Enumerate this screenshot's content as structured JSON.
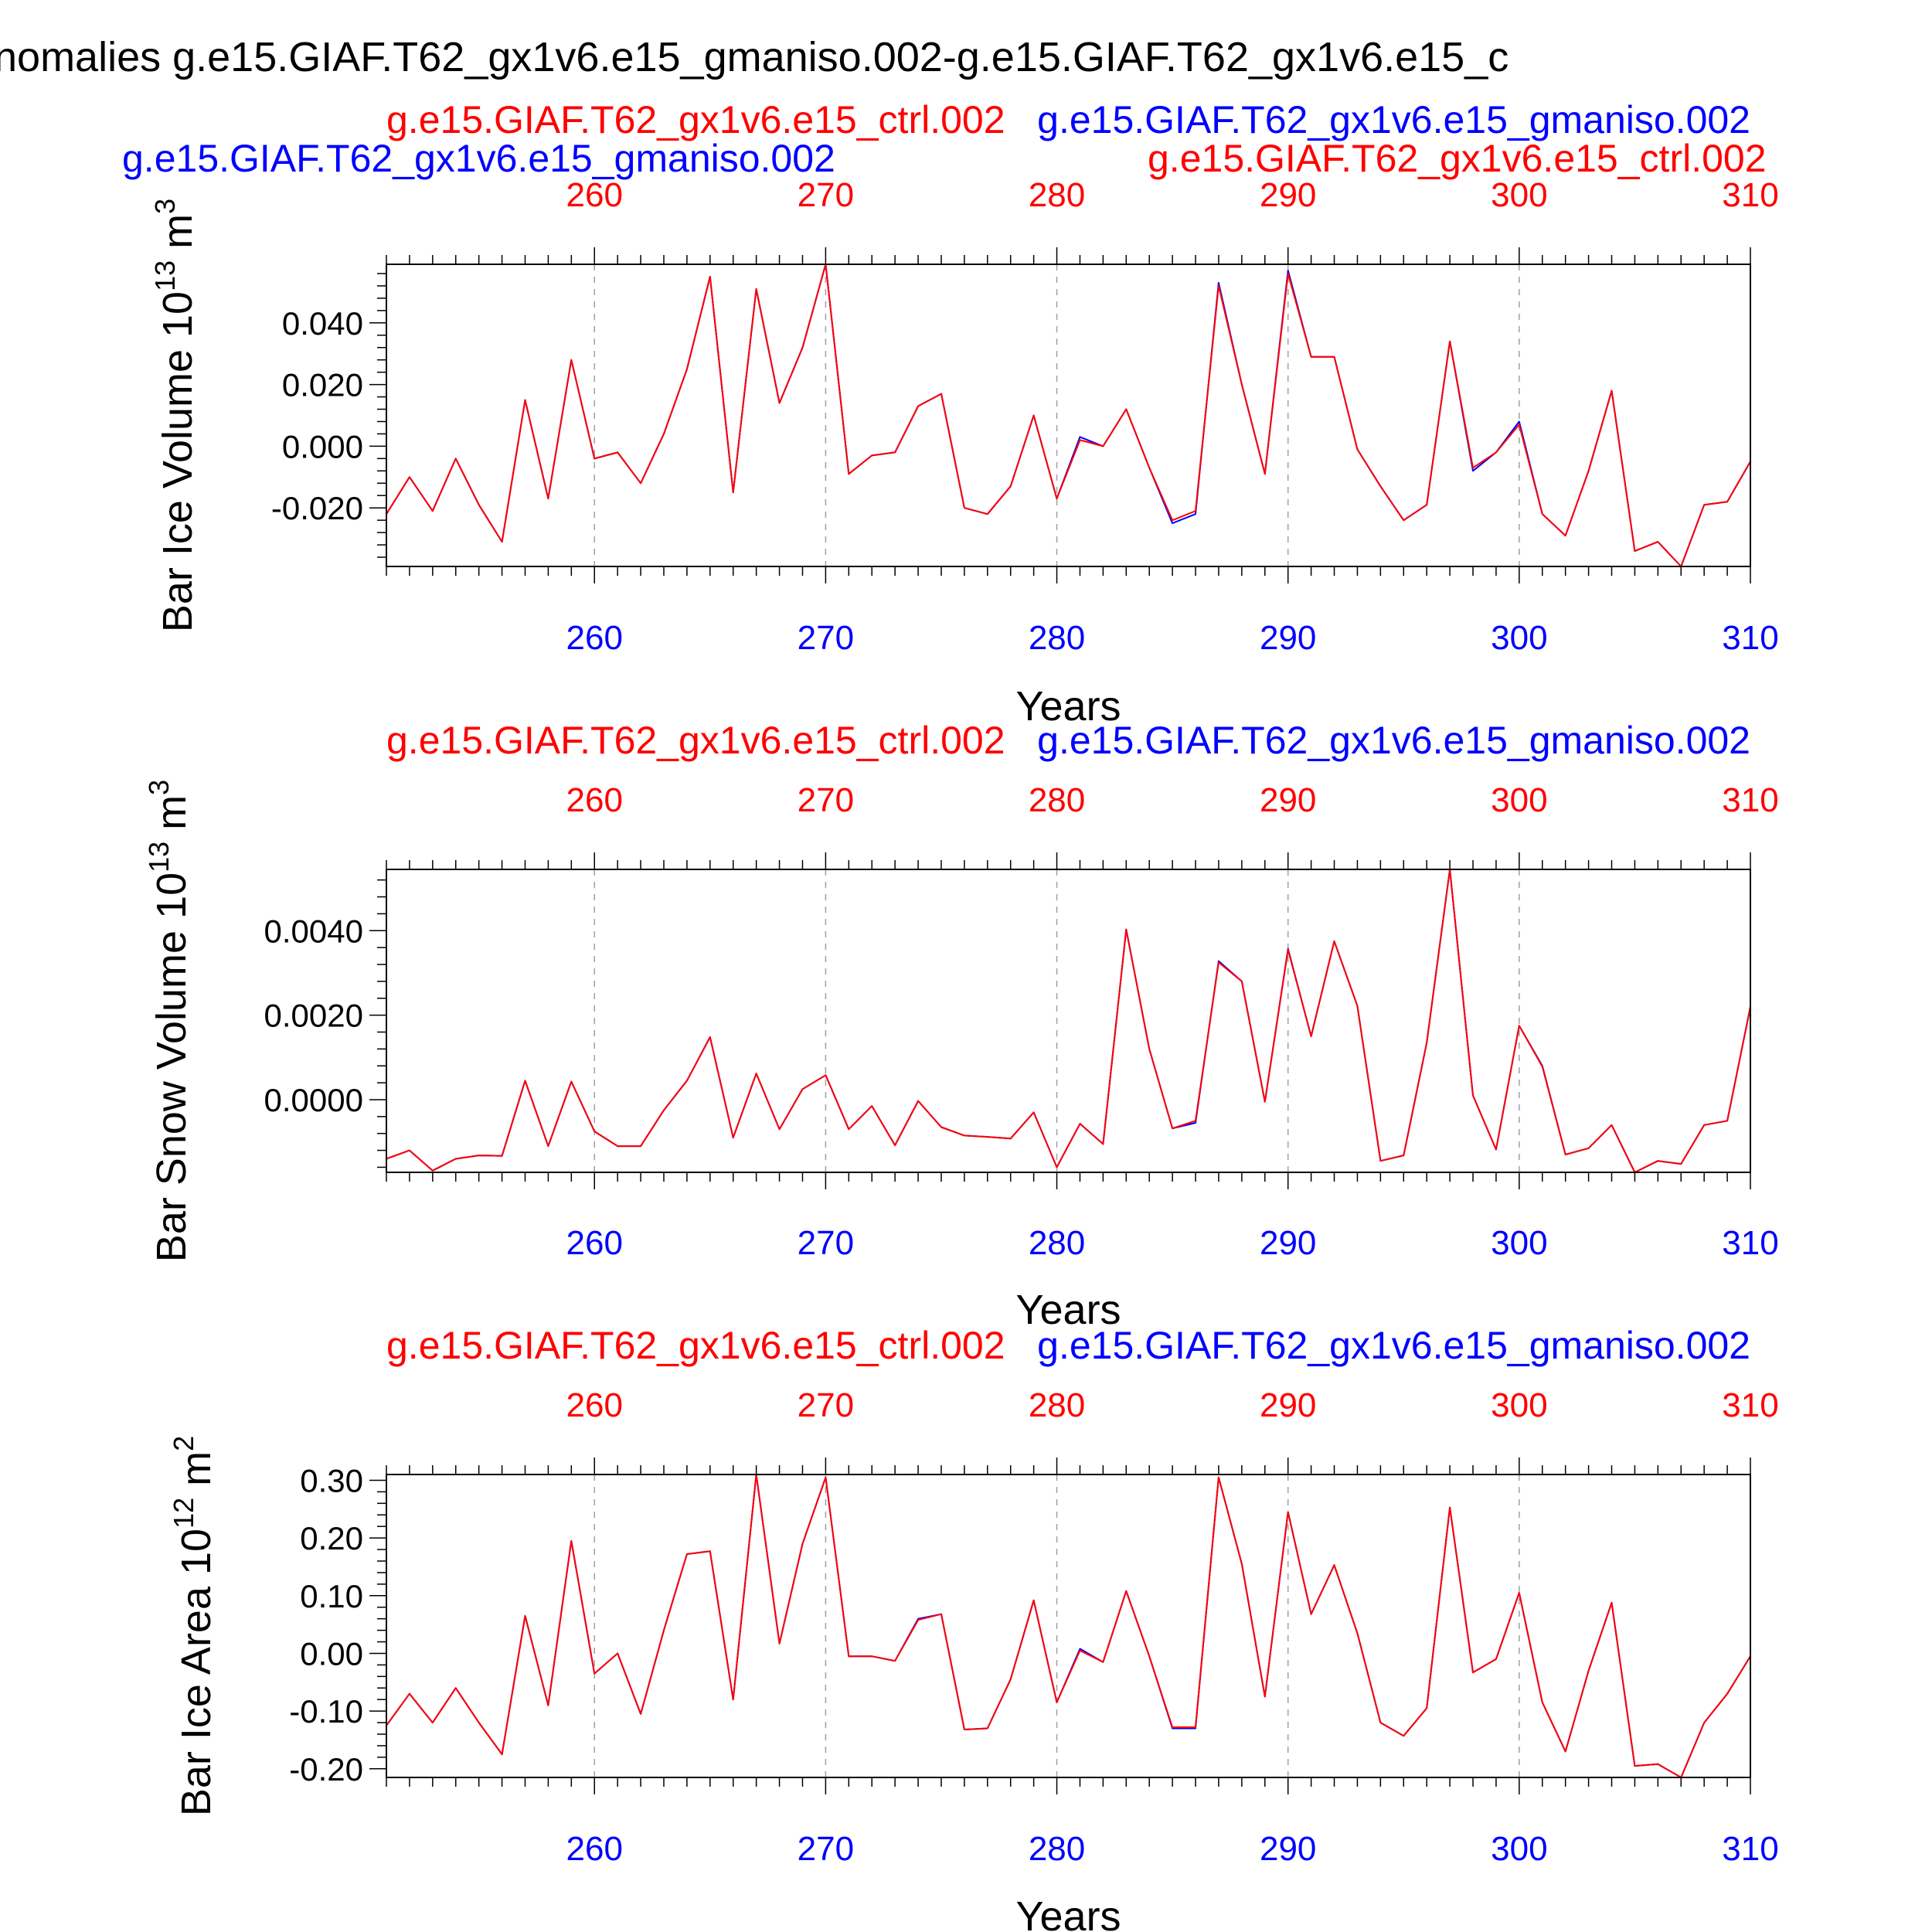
{
  "colors": {
    "red": "#ff0000",
    "blue": "#0000ff",
    "ctrl_line": "#ff0000",
    "gmaniso_line": "#0000ff",
    "frame": "#000000",
    "grid": "#a0a0a0"
  },
  "figure_title": "nomalies g.e15.GIAF.T62_gx1v6.e15_gmaniso.002-g.e15.GIAF.T62_gx1v6.e15_c",
  "top_label_left": "g.e15.GIAF.T62_gx1v6.e15_gmaniso.002",
  "top_label_right": "g.e15.GIAF.T62_gx1v6.e15_ctrl.002",
  "chart_data": [
    {
      "type": "line",
      "run_label_red": "g.e15.GIAF.T62_gx1v6.e15_ctrl.002",
      "run_label_blue": "g.e15.GIAF.T62_gx1v6.e15_gmaniso.002",
      "ylabel": {
        "text": "Bar Ice Volume 10",
        "exp": "13",
        "unit": " m",
        "unit_exp": "3"
      },
      "xlabel": "Years",
      "xlim": [
        251,
        310
      ],
      "ylim": [
        -0.039,
        0.059
      ],
      "xticks": [
        260,
        270,
        280,
        290,
        300,
        310
      ],
      "xtick_labels": [
        "260",
        "270",
        "280",
        "290",
        "300",
        "310"
      ],
      "yticks": [
        -0.02,
        0.0,
        0.02,
        0.04
      ],
      "ytick_labels": [
        "-0.020",
        "0.000",
        "0.020",
        "0.040"
      ],
      "grid": "vertical dashed at major x ticks",
      "x": [
        251,
        252,
        253,
        254,
        255,
        256,
        257,
        258,
        259,
        260,
        261,
        262,
        263,
        264,
        265,
        266,
        267,
        268,
        269,
        270,
        271,
        272,
        273,
        274,
        275,
        276,
        277,
        278,
        279,
        280,
        281,
        282,
        283,
        284,
        285,
        286,
        287,
        288,
        289,
        290,
        291,
        292,
        293,
        294,
        295,
        296,
        297,
        298,
        299,
        300,
        301,
        302,
        303,
        304,
        305,
        306,
        307,
        308,
        309,
        310
      ],
      "series": [
        {
          "name": "g.e15.GIAF.T62_gx1v6.e15_gmaniso.002",
          "color": "#0000ff",
          "values": [
            -0.022,
            -0.01,
            -0.021,
            -0.004,
            -0.019,
            -0.031,
            0.015,
            -0.017,
            0.028,
            -0.004,
            -0.002,
            -0.012,
            0.004,
            0.025,
            0.055,
            -0.015,
            0.051,
            0.014,
            0.032,
            0.059,
            -0.009,
            -0.003,
            -0.002,
            0.013,
            0.017,
            -0.02,
            -0.022,
            -0.013,
            0.01,
            -0.017,
            0.003,
            0.0,
            0.012,
            -0.007,
            -0.025,
            -0.022,
            0.053,
            0.02,
            -0.009,
            0.057,
            0.029,
            0.029,
            -0.001,
            -0.013,
            -0.024,
            -0.019,
            0.034,
            -0.008,
            -0.002,
            0.008,
            -0.022,
            -0.029,
            -0.008,
            0.018,
            -0.034,
            -0.031,
            -0.039,
            -0.019,
            -0.018,
            -0.005
          ]
        },
        {
          "name": "g.e15.GIAF.T62_gx1v6.e15_ctrl.002",
          "color": "#ff0000",
          "values": [
            -0.022,
            -0.01,
            -0.021,
            -0.004,
            -0.019,
            -0.031,
            0.015,
            -0.017,
            0.028,
            -0.004,
            -0.002,
            -0.012,
            0.004,
            0.025,
            0.055,
            -0.015,
            0.051,
            0.014,
            0.032,
            0.059,
            -0.009,
            -0.003,
            -0.002,
            0.013,
            0.017,
            -0.02,
            -0.022,
            -0.013,
            0.01,
            -0.017,
            0.002,
            0.0,
            0.012,
            -0.007,
            -0.024,
            -0.021,
            0.052,
            0.02,
            -0.009,
            0.056,
            0.029,
            0.029,
            -0.001,
            -0.013,
            -0.024,
            -0.019,
            0.034,
            -0.007,
            -0.002,
            0.007,
            -0.022,
            -0.029,
            -0.008,
            0.018,
            -0.034,
            -0.031,
            -0.039,
            -0.019,
            -0.018,
            -0.005
          ]
        }
      ]
    },
    {
      "type": "line",
      "run_label_red": "g.e15.GIAF.T62_gx1v6.e15_ctrl.002",
      "run_label_blue": "g.e15.GIAF.T62_gx1v6.e15_gmaniso.002",
      "ylabel": {
        "text": "Bar Snow Volume 10",
        "exp": "13",
        "unit": " m",
        "unit_exp": "3"
      },
      "xlabel": "Years",
      "xlim": [
        251,
        310
      ],
      "ylim": [
        -0.00172,
        0.00545
      ],
      "xticks": [
        260,
        270,
        280,
        290,
        300,
        310
      ],
      "xtick_labels": [
        "260",
        "270",
        "280",
        "290",
        "300",
        "310"
      ],
      "yticks": [
        0.0,
        0.002,
        0.004
      ],
      "ytick_labels": [
        "0.0000",
        "0.0020",
        "0.0040"
      ],
      "grid": "vertical dashed at major x ticks",
      "x": [
        251,
        252,
        253,
        254,
        255,
        256,
        257,
        258,
        259,
        260,
        261,
        262,
        263,
        264,
        265,
        266,
        267,
        268,
        269,
        270,
        271,
        272,
        273,
        274,
        275,
        276,
        277,
        278,
        279,
        280,
        281,
        282,
        283,
        284,
        285,
        286,
        287,
        288,
        289,
        290,
        291,
        292,
        293,
        294,
        295,
        296,
        297,
        298,
        299,
        300,
        301,
        302,
        303,
        304,
        305,
        306,
        307,
        308,
        309,
        310
      ],
      "series": [
        {
          "name": "g.e15.GIAF.T62_gx1v6.e15_gmaniso.002",
          "color": "#0000ff",
          "values": [
            -0.0014,
            -0.0012,
            -0.00168,
            -0.0014,
            -0.00132,
            -0.00133,
            0.00045,
            -0.0011,
            0.00043,
            -0.00075,
            -0.0011,
            -0.0011,
            -0.00025,
            0.00045,
            0.00148,
            -0.0009,
            0.00062,
            -0.0007,
            0.00025,
            0.00058,
            -0.0007,
            -0.00015,
            -0.00108,
            -3e-05,
            -0.00065,
            -0.00085,
            -0.00088,
            -0.00092,
            -0.0003,
            -0.0016,
            -0.00057,
            -0.00105,
            0.00403,
            0.0012,
            -0.00068,
            -0.00055,
            0.00328,
            0.0028,
            -5e-05,
            0.00357,
            0.0015,
            0.00375,
            0.00222,
            -0.00145,
            -0.00132,
            0.00135,
            0.00545,
            0.0001,
            -0.00118,
            0.00175,
            0.0008,
            -0.0013,
            -0.00115,
            -0.0006,
            -0.00172,
            -0.00145,
            -0.00152,
            -0.0006,
            -0.0005,
            0.0022
          ]
        },
        {
          "name": "g.e15.GIAF.T62_gx1v6.e15_ctrl.002",
          "color": "#ff0000",
          "values": [
            -0.0014,
            -0.0012,
            -0.00168,
            -0.0014,
            -0.00132,
            -0.00133,
            0.00045,
            -0.0011,
            0.00043,
            -0.00075,
            -0.0011,
            -0.0011,
            -0.00025,
            0.00045,
            0.00148,
            -0.0009,
            0.00062,
            -0.0007,
            0.00025,
            0.00058,
            -0.0007,
            -0.00015,
            -0.00108,
            -3e-05,
            -0.00065,
            -0.00085,
            -0.00088,
            -0.00092,
            -0.0003,
            -0.0016,
            -0.00057,
            -0.00105,
            0.00403,
            0.0012,
            -0.00068,
            -0.0005,
            0.00325,
            0.0028,
            -5e-05,
            0.00355,
            0.0015,
            0.00375,
            0.00222,
            -0.00145,
            -0.00132,
            0.00135,
            0.00545,
            0.0001,
            -0.00118,
            0.00175,
            0.00078,
            -0.0013,
            -0.00115,
            -0.0006,
            -0.00172,
            -0.00145,
            -0.00152,
            -0.0006,
            -0.0005,
            0.0022
          ]
        }
      ]
    },
    {
      "type": "line",
      "run_label_red": "g.e15.GIAF.T62_gx1v6.e15_ctrl.002",
      "run_label_blue": "g.e15.GIAF.T62_gx1v6.e15_gmaniso.002",
      "ylabel": {
        "text": "Bar Ice Area 10",
        "exp": "12",
        "unit": " m",
        "unit_exp": "2"
      },
      "xlabel": "Years",
      "xlim": [
        251,
        310
      ],
      "ylim": [
        -0.215,
        0.31
      ],
      "xticks": [
        260,
        270,
        280,
        290,
        300,
        310
      ],
      "xtick_labels": [
        "260",
        "270",
        "280",
        "290",
        "300",
        "310"
      ],
      "yticks": [
        -0.2,
        -0.1,
        0.0,
        0.1,
        0.2,
        0.3
      ],
      "ytick_labels": [
        "-0.20",
        "-0.10",
        "0.00",
        "0.10",
        "0.20",
        "0.30"
      ],
      "grid": "vertical dashed at major x ticks",
      "x": [
        251,
        252,
        253,
        254,
        255,
        256,
        257,
        258,
        259,
        260,
        261,
        262,
        263,
        264,
        265,
        266,
        267,
        268,
        269,
        270,
        271,
        272,
        273,
        274,
        275,
        276,
        277,
        278,
        279,
        280,
        281,
        282,
        283,
        284,
        285,
        286,
        287,
        288,
        289,
        290,
        291,
        292,
        293,
        294,
        295,
        296,
        297,
        298,
        299,
        300,
        301,
        302,
        303,
        304,
        305,
        306,
        307,
        308,
        309,
        310
      ],
      "series": [
        {
          "name": "g.e15.GIAF.T62_gx1v6.e15_gmaniso.002",
          "color": "#0000ff",
          "values": [
            -0.125,
            -0.07,
            -0.12,
            -0.06,
            -0.12,
            -0.175,
            0.065,
            -0.09,
            0.195,
            -0.035,
            0.0,
            -0.105,
            0.04,
            0.172,
            0.177,
            -0.08,
            0.31,
            0.017,
            0.19,
            0.305,
            -0.005,
            -0.005,
            -0.013,
            0.06,
            0.068,
            -0.132,
            -0.13,
            -0.045,
            0.092,
            -0.085,
            0.008,
            -0.015,
            0.108,
            -0.005,
            -0.13,
            -0.13,
            0.305,
            0.155,
            -0.075,
            0.245,
            0.068,
            0.153,
            0.035,
            -0.12,
            -0.143,
            -0.095,
            0.253,
            -0.033,
            -0.01,
            0.105,
            -0.085,
            -0.17,
            -0.03,
            0.088,
            -0.195,
            -0.192,
            -0.215,
            -0.12,
            -0.07,
            -0.005
          ]
        },
        {
          "name": "g.e15.GIAF.T62_gx1v6.e15_ctrl.002",
          "color": "#ff0000",
          "values": [
            -0.125,
            -0.07,
            -0.12,
            -0.06,
            -0.12,
            -0.175,
            0.065,
            -0.09,
            0.195,
            -0.035,
            0.0,
            -0.105,
            0.04,
            0.172,
            0.177,
            -0.08,
            0.31,
            0.017,
            0.19,
            0.305,
            -0.005,
            -0.005,
            -0.013,
            0.058,
            0.068,
            -0.132,
            -0.13,
            -0.045,
            0.092,
            -0.085,
            0.005,
            -0.015,
            0.108,
            -0.005,
            -0.128,
            -0.128,
            0.305,
            0.155,
            -0.075,
            0.245,
            0.068,
            0.153,
            0.035,
            -0.12,
            -0.143,
            -0.095,
            0.253,
            -0.033,
            -0.01,
            0.105,
            -0.085,
            -0.17,
            -0.03,
            0.088,
            -0.195,
            -0.192,
            -0.215,
            -0.12,
            -0.07,
            -0.005
          ]
        }
      ]
    }
  ]
}
